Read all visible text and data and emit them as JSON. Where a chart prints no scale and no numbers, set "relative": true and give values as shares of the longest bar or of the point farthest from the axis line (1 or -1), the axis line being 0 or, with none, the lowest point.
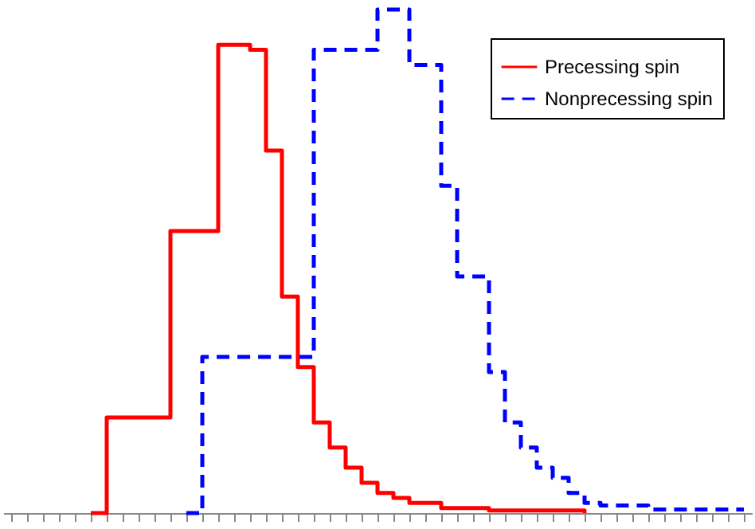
{
  "chart_data": {
    "type": "step",
    "relative": true,
    "tick_labels": false,
    "legend": "top right",
    "categories": [
      null,
      null,
      null,
      null,
      null,
      null,
      null,
      null,
      null,
      null,
      null,
      null,
      null,
      null,
      null,
      null,
      null,
      null,
      null,
      null,
      null,
      null,
      null,
      null,
      null,
      null,
      null,
      null,
      null,
      null,
      null,
      null,
      null,
      null,
      null,
      null,
      null,
      null,
      null,
      null,
      null,
      null,
      null,
      null,
      null,
      null,
      null
    ],
    "series": [
      {
        "name": "Precessing spin",
        "color": "#ff0000",
        "line_style": "solid",
        "values": [
          null,
          null,
          null,
          null,
          null,
          0,
          0.19,
          0.19,
          0.19,
          0.19,
          0.56,
          0.56,
          0.56,
          0.93,
          0.93,
          0.92,
          0.72,
          0.43,
          0.29,
          0.18,
          0.13,
          0.09,
          0.06,
          0.04,
          0.03,
          0.02,
          0.02,
          0.01,
          0.01,
          0.01,
          0.005,
          0.005,
          0.005,
          0.005,
          0.005,
          0.005,
          0,
          null,
          null,
          null,
          null,
          null,
          null,
          null,
          null,
          null,
          null
        ]
      },
      {
        "name": "Nonprecessing spin",
        "color": "#0000ff",
        "line_style": "dashed",
        "values": [
          null,
          null,
          null,
          null,
          null,
          null,
          null,
          null,
          null,
          null,
          null,
          0,
          0.31,
          0.31,
          0.31,
          0.31,
          0.31,
          0.31,
          0.31,
          0.92,
          0.92,
          0.92,
          0.92,
          1,
          1,
          0.89,
          0.89,
          0.65,
          0.47,
          0.47,
          0.28,
          0.18,
          0.13,
          0.09,
          0.07,
          0.04,
          0.02,
          0.015,
          0.015,
          0.015,
          0.007,
          0.007,
          0.007,
          0.007,
          0.007,
          0.007,
          0.007
        ]
      }
    ]
  }
}
